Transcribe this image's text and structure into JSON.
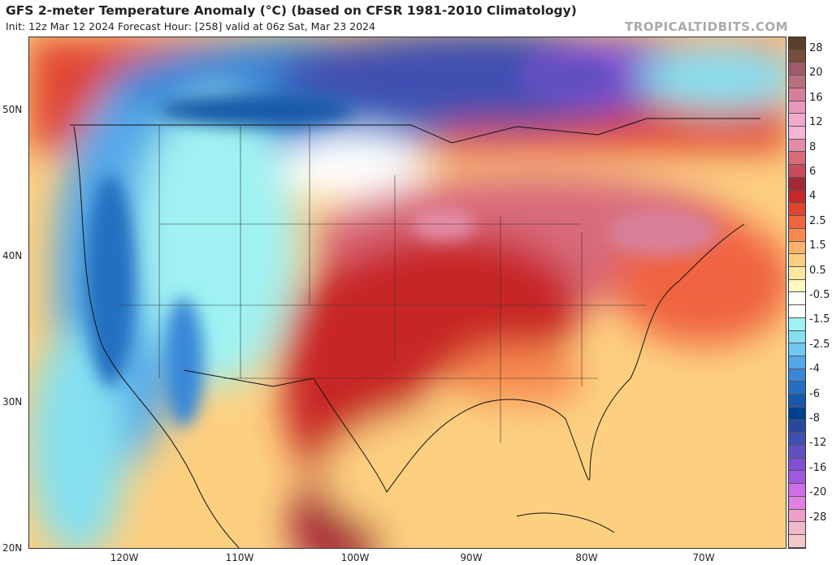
{
  "header": {
    "title": "GFS 2-meter Temperature Anomaly (°C) (based on CFSR 1981-2010 Climatology)",
    "subtitle": "Init: 12z Mar 12 2024   Forecast Hour: [258]   valid at 06z Sat, Mar 23 2024",
    "brand": "TROPICALTIDBITS.COM"
  },
  "axes": {
    "lat": [
      "50N",
      "40N",
      "30N",
      "20N"
    ],
    "lon": [
      "120W",
      "110W",
      "100W",
      "90W",
      "80W",
      "70W"
    ]
  },
  "colorbar": {
    "labels": [
      "28",
      "20",
      "16",
      "12",
      "8",
      "6",
      "4",
      "2.5",
      "1.5",
      "0.5",
      "-0.5",
      "-1.5",
      "-2.5",
      "-4",
      "-6",
      "-8",
      "-12",
      "-16",
      "-20",
      "-28"
    ],
    "colors": [
      "#5a3e2c",
      "#7a4c3c",
      "#a05a6a",
      "#b8707e",
      "#d8809a",
      "#ea98bc",
      "#f2a8cc",
      "#f4b4d4",
      "#e48ca6",
      "#d86a7a",
      "#c44c5c",
      "#a62838",
      "#c82828",
      "#e04430",
      "#f06440",
      "#f88a50",
      "#fbb26c",
      "#fdd080",
      "#fee8a0",
      "#fff8c0",
      "#ffffff",
      "#ffffff",
      "#a0f2f2",
      "#84e0f0",
      "#70c8f0",
      "#54a8e8",
      "#3888d8",
      "#2470c0",
      "#1858a8",
      "#004090",
      "#2848a0",
      "#4050b0",
      "#6050c0",
      "#8050d0",
      "#a058e0",
      "#d070e8",
      "#e080e0",
      "#f0a0c8",
      "#f0b8c8",
      "#f4c8c8"
    ]
  }
}
